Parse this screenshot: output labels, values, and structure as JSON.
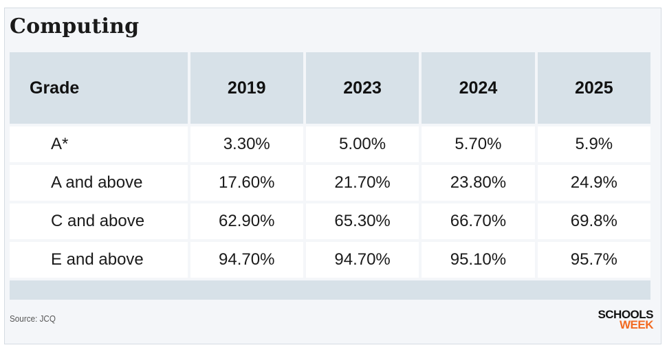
{
  "title": "Computing",
  "chart_data": {
    "type": "table",
    "title": "Computing",
    "columns": [
      "Grade",
      "2019",
      "2023",
      "2024",
      "2025"
    ],
    "rows": [
      {
        "grade": "A*",
        "values": [
          "3.30%",
          "5.00%",
          "5.70%",
          "5.9%"
        ]
      },
      {
        "grade": "A and above",
        "values": [
          "17.60%",
          "21.70%",
          "23.80%",
          "24.9%"
        ]
      },
      {
        "grade": "C and above",
        "values": [
          "62.90%",
          "65.30%",
          "66.70%",
          "69.8%"
        ]
      },
      {
        "grade": "E and above",
        "values": [
          "94.70%",
          "94.70%",
          "95.10%",
          "95.7%"
        ]
      }
    ]
  },
  "source": "Source: JCQ",
  "logo": {
    "line1": "SCHOOLS",
    "line2": "WEEK",
    "line2_color": "#f26b21"
  },
  "colors": {
    "header_band": "#d7e1e8",
    "background": "#f4f6f9",
    "accent": "#f26b21"
  }
}
